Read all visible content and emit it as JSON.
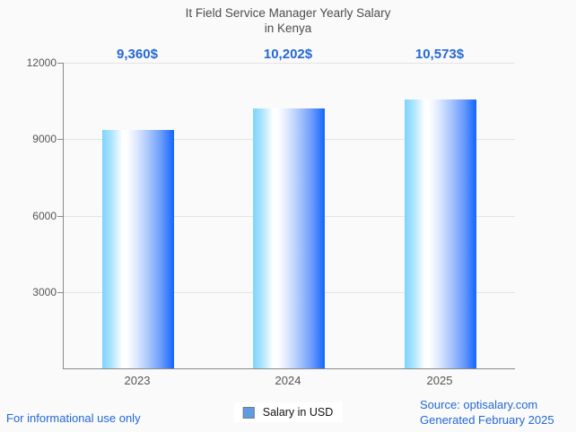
{
  "title": {
    "line1": "It Field Service Manager Yearly Salary",
    "line2": "in Kenya"
  },
  "chart_data": {
    "type": "bar",
    "title": "It Field Service Manager Yearly Salary in Kenya",
    "categories": [
      "2023",
      "2024",
      "2025"
    ],
    "series": [
      {
        "name": "Salary in USD",
        "values": [
          9360,
          10202,
          10573
        ]
      }
    ],
    "values": [
      9360,
      10202,
      10573
    ],
    "value_labels": [
      "9,360$",
      "10,202$",
      "10,573$"
    ],
    "xlabel": "",
    "ylabel": "",
    "ylim": [
      0,
      12000
    ],
    "yticks": [
      12000,
      9000,
      6000,
      3000
    ],
    "grid": true,
    "legend_position": "bottom-center"
  },
  "legend": {
    "label": "Salary in USD"
  },
  "footer": {
    "left_note": "For informational use only",
    "source": "Source: optisalary.com",
    "generated": "Generated February 2025"
  },
  "colors": {
    "background": "#fafafa",
    "accent_blue": "#2468d6",
    "bar_gradient_left": "#7ed3fd",
    "bar_gradient_mid": "#ffffff",
    "bar_gradient_right": "#1465fd",
    "axis": "#8a8a8a",
    "gridline": "#e3e3e3",
    "title_text": "#4d4d4d",
    "tick_text": "#555555",
    "legend_marker": "#5b9ce4"
  }
}
